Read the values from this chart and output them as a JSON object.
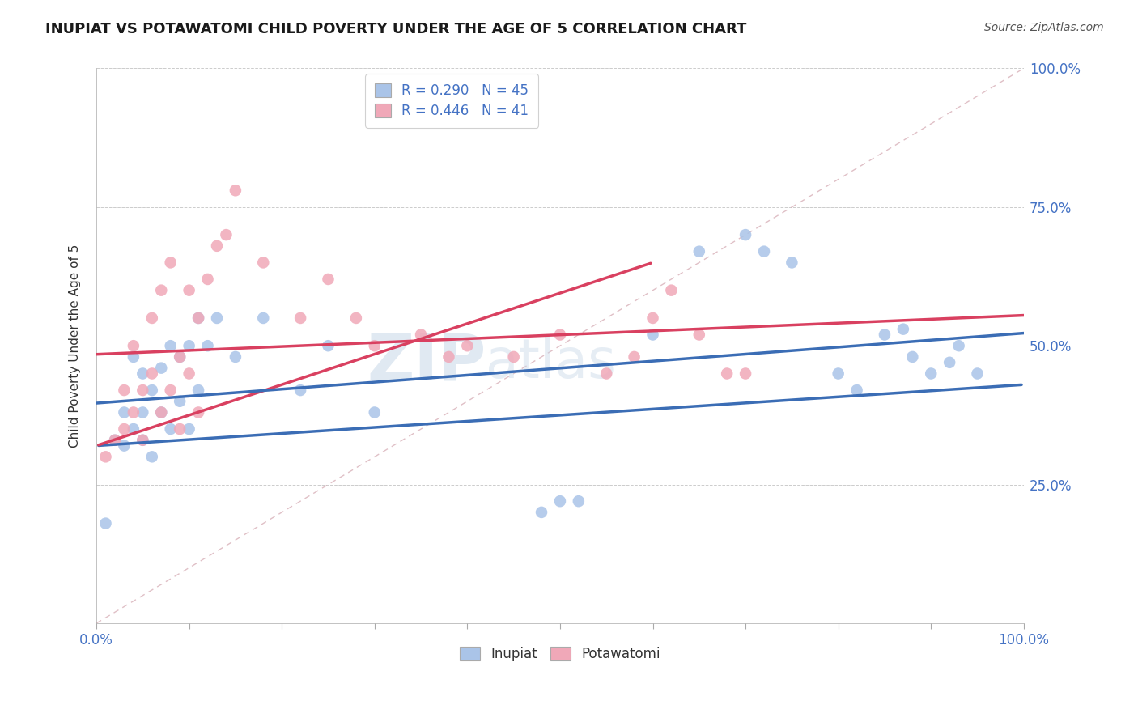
{
  "title": "INUPIAT VS POTAWATOMI CHILD POVERTY UNDER THE AGE OF 5 CORRELATION CHART",
  "source": "Source: ZipAtlas.com",
  "ylabel": "Child Poverty Under the Age of 5",
  "inupiat_R": 0.29,
  "inupiat_N": 45,
  "potawatomi_R": 0.446,
  "potawatomi_N": 41,
  "inupiat_color": "#aac4e8",
  "potawatomi_color": "#f0a8b8",
  "inupiat_line_color": "#3b6db5",
  "potawatomi_line_color": "#d94060",
  "diagonal_color": "#d8b0b8",
  "background_color": "#ffffff",
  "xlim": [
    0,
    100
  ],
  "ylim": [
    0,
    100
  ],
  "inupiat_x": [
    1,
    2,
    3,
    3,
    4,
    4,
    5,
    5,
    5,
    6,
    6,
    7,
    7,
    8,
    8,
    9,
    9,
    10,
    10,
    11,
    11,
    12,
    13,
    15,
    18,
    22,
    25,
    30,
    48,
    50,
    52,
    60,
    65,
    70,
    72,
    75,
    80,
    82,
    85,
    87,
    88,
    90,
    92,
    93,
    95
  ],
  "inupiat_y": [
    18,
    33,
    32,
    38,
    35,
    48,
    33,
    38,
    45,
    30,
    42,
    38,
    46,
    35,
    50,
    40,
    48,
    35,
    50,
    42,
    55,
    50,
    55,
    48,
    55,
    42,
    50,
    38,
    20,
    22,
    22,
    52,
    67,
    70,
    67,
    65,
    45,
    42,
    52,
    53,
    48,
    45,
    47,
    50,
    45
  ],
  "potawatomi_x": [
    1,
    2,
    3,
    3,
    4,
    4,
    5,
    5,
    6,
    6,
    7,
    7,
    8,
    8,
    9,
    9,
    10,
    10,
    11,
    11,
    12,
    13,
    14,
    15,
    18,
    22,
    25,
    28,
    30,
    35,
    38,
    40,
    45,
    50,
    55,
    58,
    60,
    62,
    65,
    68,
    70
  ],
  "potawatomi_y": [
    30,
    33,
    35,
    42,
    38,
    50,
    33,
    42,
    45,
    55,
    38,
    60,
    42,
    65,
    35,
    48,
    45,
    60,
    38,
    55,
    62,
    68,
    70,
    78,
    65,
    55,
    62,
    55,
    50,
    52,
    48,
    50,
    48,
    52,
    45,
    48,
    55,
    60,
    52,
    45,
    45
  ],
  "inupiat_line_x0": 0,
  "inupiat_line_y0": 32,
  "inupiat_line_x1": 100,
  "inupiat_line_y1": 43,
  "potawatomi_line_x0": 0,
  "potawatomi_line_y0": 32,
  "potawatomi_line_x1": 60,
  "potawatomi_line_y1": 65
}
